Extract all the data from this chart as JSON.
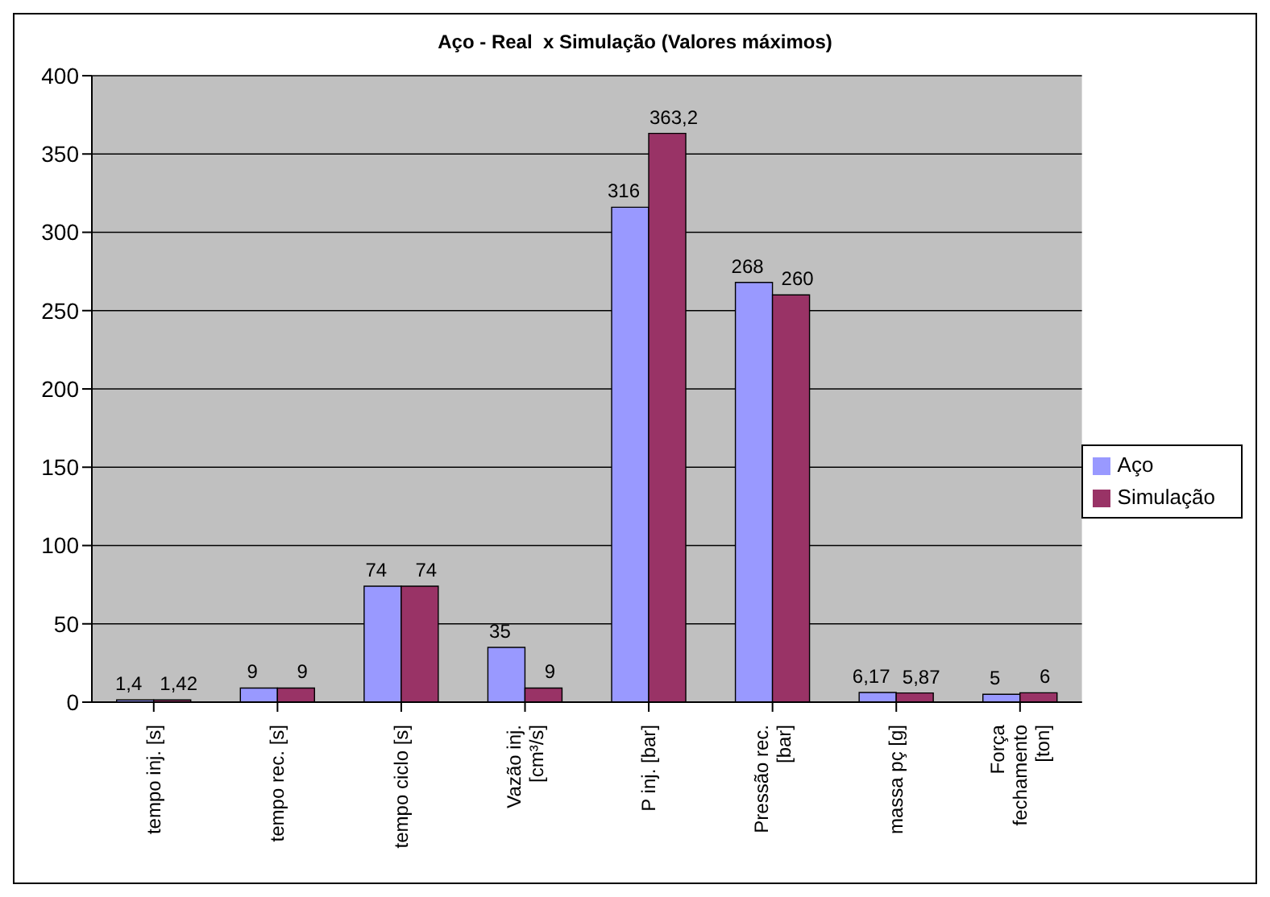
{
  "chart_data": {
    "type": "bar",
    "title": "Aço - Real  x Simulação (Valores máximos)",
    "categories": [
      "tempo inj. [s]",
      "tempo rec. [s]",
      "tempo ciclo [s]",
      "Vazão inj. [cm³/s]",
      "P inj. [bar]",
      "Pressão rec. [bar]",
      "massa pç [g]",
      "Força fechamento [ton]"
    ],
    "series": [
      {
        "name": "Aço",
        "color": "#9999ff",
        "values": [
          1.4,
          9,
          74,
          35,
          316,
          268,
          6.17,
          5
        ],
        "value_labels": [
          "1,4",
          "9",
          "74",
          "35",
          "316",
          "268",
          "6,17",
          "5"
        ]
      },
      {
        "name": "Simulação",
        "color": "#993366",
        "values": [
          1.42,
          9,
          74,
          9,
          363.2,
          260,
          5.87,
          6
        ],
        "value_labels": [
          "1,42",
          "9",
          "74",
          "9",
          "363,2",
          "260",
          "5,87",
          "6"
        ]
      }
    ],
    "ylim": [
      0,
      400
    ],
    "yticks": [
      0,
      50,
      100,
      150,
      200,
      250,
      300,
      350,
      400
    ],
    "grid": "y",
    "legend": "right"
  }
}
